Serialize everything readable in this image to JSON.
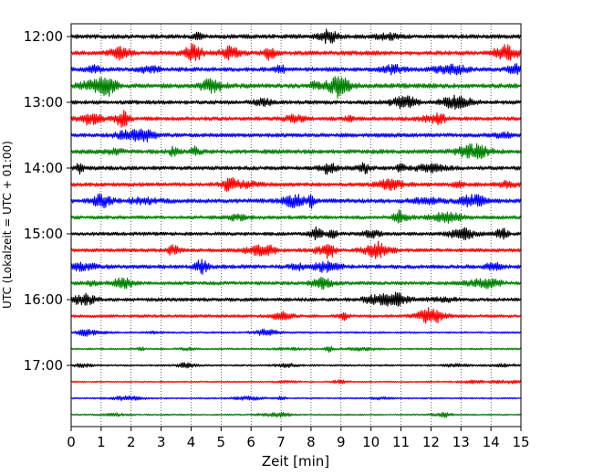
{
  "chart_data": {
    "type": "line",
    "subtype": "helicorder",
    "xlabel": "Zeit  [min]",
    "ylabel": "UTC (Lokalzeit = UTC + 01:00)",
    "xlim": [
      0,
      15
    ],
    "x_ticks": [
      0,
      1,
      2,
      3,
      4,
      5,
      6,
      7,
      8,
      9,
      10,
      11,
      12,
      13,
      14,
      15
    ],
    "y_ticks": [
      "12:00",
      "13:00",
      "14:00",
      "15:00",
      "16:00",
      "17:00"
    ],
    "vertical_grid": "dotted",
    "trace_interval_minutes": 15,
    "trace_colors": [
      "#000000",
      "#ff0000",
      "#0000ff",
      "#008000"
    ],
    "traces": [
      {
        "start": "12:00",
        "amplitude": 0.6
      },
      {
        "start": "12:15",
        "amplitude": 0.6
      },
      {
        "start": "12:30",
        "amplitude": 0.6
      },
      {
        "start": "12:45",
        "amplitude": 0.65
      },
      {
        "start": "13:00",
        "amplitude": 0.55
      },
      {
        "start": "13:15",
        "amplitude": 0.55
      },
      {
        "start": "13:30",
        "amplitude": 0.55
      },
      {
        "start": "13:45",
        "amplitude": 0.6
      },
      {
        "start": "14:00",
        "amplitude": 0.55
      },
      {
        "start": "14:15",
        "amplitude": 0.55
      },
      {
        "start": "14:30",
        "amplitude": 0.6
      },
      {
        "start": "14:45",
        "amplitude": 0.5
      },
      {
        "start": "15:00",
        "amplitude": 0.5
      },
      {
        "start": "15:15",
        "amplitude": 0.5
      },
      {
        "start": "15:30",
        "amplitude": 0.55
      },
      {
        "start": "15:45",
        "amplitude": 0.5
      },
      {
        "start": "16:00",
        "amplitude": 0.5
      },
      {
        "start": "16:15",
        "amplitude": 0.4
      },
      {
        "start": "16:30",
        "amplitude": 0.25
      },
      {
        "start": "16:45",
        "amplitude": 0.25
      },
      {
        "start": "17:00",
        "amplitude": 0.25
      },
      {
        "start": "17:15",
        "amplitude": 0.2
      },
      {
        "start": "17:30",
        "amplitude": 0.2
      },
      {
        "start": "17:45",
        "amplitude": 0.2
      }
    ]
  }
}
